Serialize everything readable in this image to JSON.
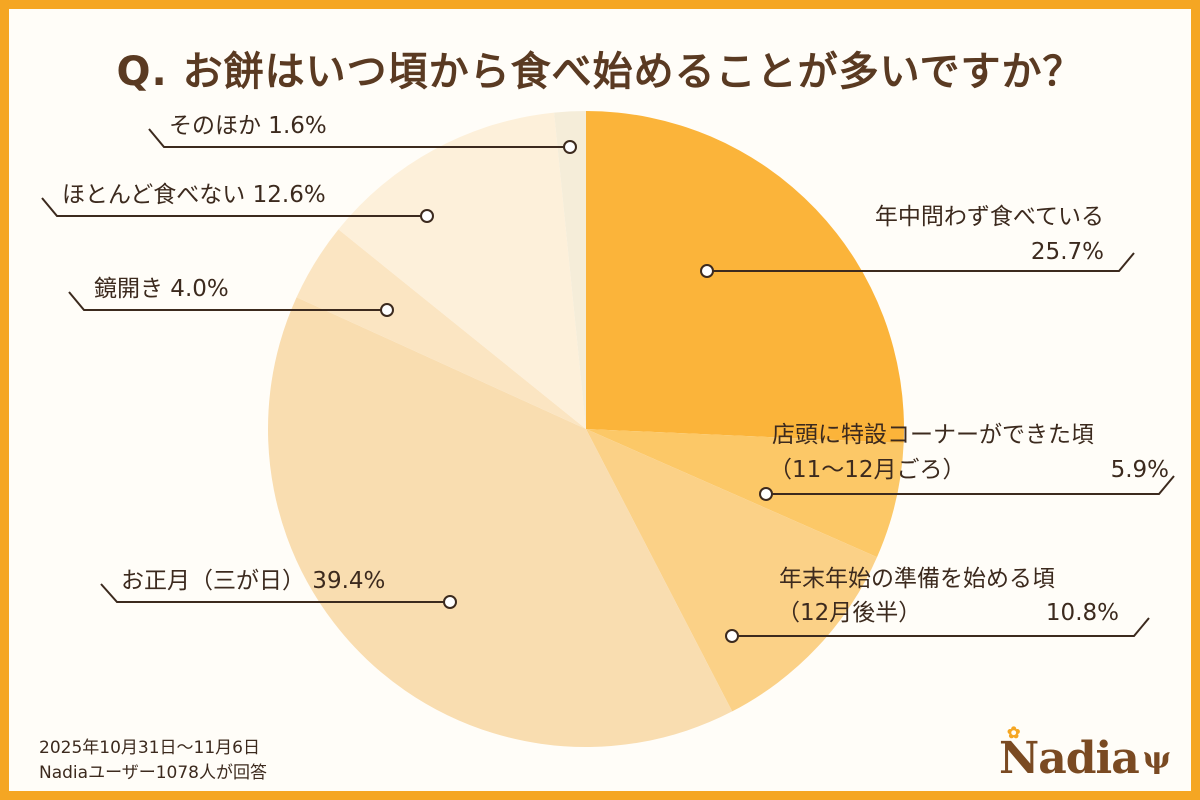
{
  "title": "Q. お餅はいつ頃から食べ始めることが多いですか？",
  "footer": {
    "line1": "2025年10月31日〜11月6日",
    "line2": "Nadiaユーザー1078人が回答"
  },
  "logo": {
    "text": "Nadia",
    "flower_icon": "flower-icon",
    "utensils_icon": "fork-spoon-icon"
  },
  "chart_data": {
    "type": "pie",
    "slices": [
      {
        "label": "年中問わず食べている",
        "value": 25.7,
        "value_text": "25.7%",
        "color": "#FBB43A"
      },
      {
        "label": "店頭に特設コーナーができた頃",
        "sublabel": "（11〜12月ごろ）",
        "value": 5.9,
        "value_text": "5.9%",
        "color": "#FCC867"
      },
      {
        "label": "年末年始の準備を始める頃",
        "sublabel": "（12月後半）",
        "value": 10.8,
        "value_text": "10.8%",
        "color": "#FBD187"
      },
      {
        "label": "お正月（三が日）",
        "value": 39.4,
        "value_text": "39.4%",
        "color": "#F9DDB0"
      },
      {
        "label": "鏡開き",
        "value": 4.0,
        "value_text": "4.0%",
        "color": "#FBE5C2"
      },
      {
        "label": "ほとんど食べない",
        "value": 12.6,
        "value_text": "12.6%",
        "color": "#FDF0DA"
      },
      {
        "label": "そのほか",
        "value": 1.6,
        "value_text": "1.6%",
        "color": "#F5EDD9"
      }
    ]
  }
}
